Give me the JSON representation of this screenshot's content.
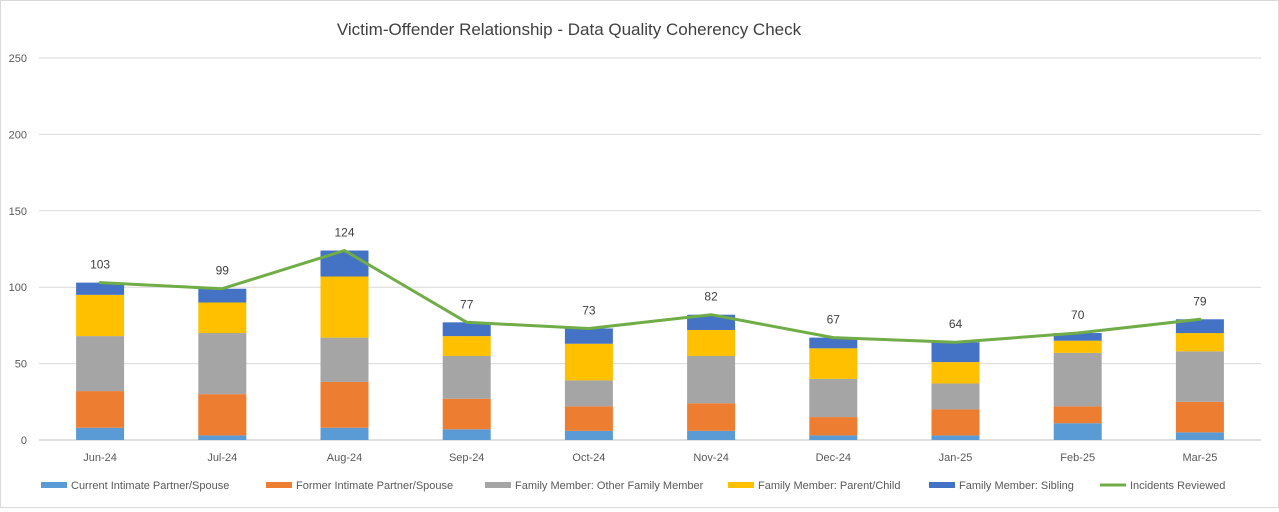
{
  "chart_data": {
    "type": "bar",
    "stacked": true,
    "title": "Victim-Offender Relationship - Data Quality Coherency Check",
    "xlabel": "",
    "ylabel": "",
    "ylim": [
      0,
      250
    ],
    "yticks": [
      0,
      50,
      100,
      150,
      200,
      250
    ],
    "grid": true,
    "legend_position": "bottom",
    "categories": [
      "Jun-24",
      "Jul-24",
      "Aug-24",
      "Sep-24",
      "Oct-24",
      "Nov-24",
      "Dec-24",
      "Jan-25",
      "Feb-25",
      "Mar-25"
    ],
    "series": [
      {
        "name": "Current Intimate Partner/Spouse",
        "color": "#5b9bd5",
        "values": [
          8,
          3,
          8,
          7,
          6,
          6,
          3,
          3,
          11,
          5
        ]
      },
      {
        "name": "Former Intimate Partner/Spouse",
        "color": "#ed7d31",
        "values": [
          24,
          27,
          30,
          20,
          16,
          18,
          12,
          17,
          11,
          20
        ]
      },
      {
        "name": "Family Member: Other Family Member",
        "color": "#a5a5a5",
        "values": [
          36,
          40,
          29,
          28,
          17,
          31,
          25,
          17,
          35,
          33
        ]
      },
      {
        "name": "Family Member: Parent/Child",
        "color": "#ffc000",
        "values": [
          27,
          20,
          40,
          13,
          24,
          17,
          20,
          14,
          8,
          12
        ]
      },
      {
        "name": "Family Member: Sibling",
        "color": "#4472c4",
        "values": [
          8,
          9,
          17,
          9,
          10,
          10,
          7,
          13,
          5,
          9
        ]
      }
    ],
    "line_series": {
      "name": "Incidents Reviewed",
      "color": "#70ad47",
      "values": [
        103,
        99,
        124,
        77,
        73,
        82,
        67,
        64,
        70,
        79
      ],
      "data_labels": [
        "103",
        "99",
        "124",
        "77",
        "73",
        "82",
        "67",
        "64",
        "70",
        "79"
      ]
    }
  }
}
